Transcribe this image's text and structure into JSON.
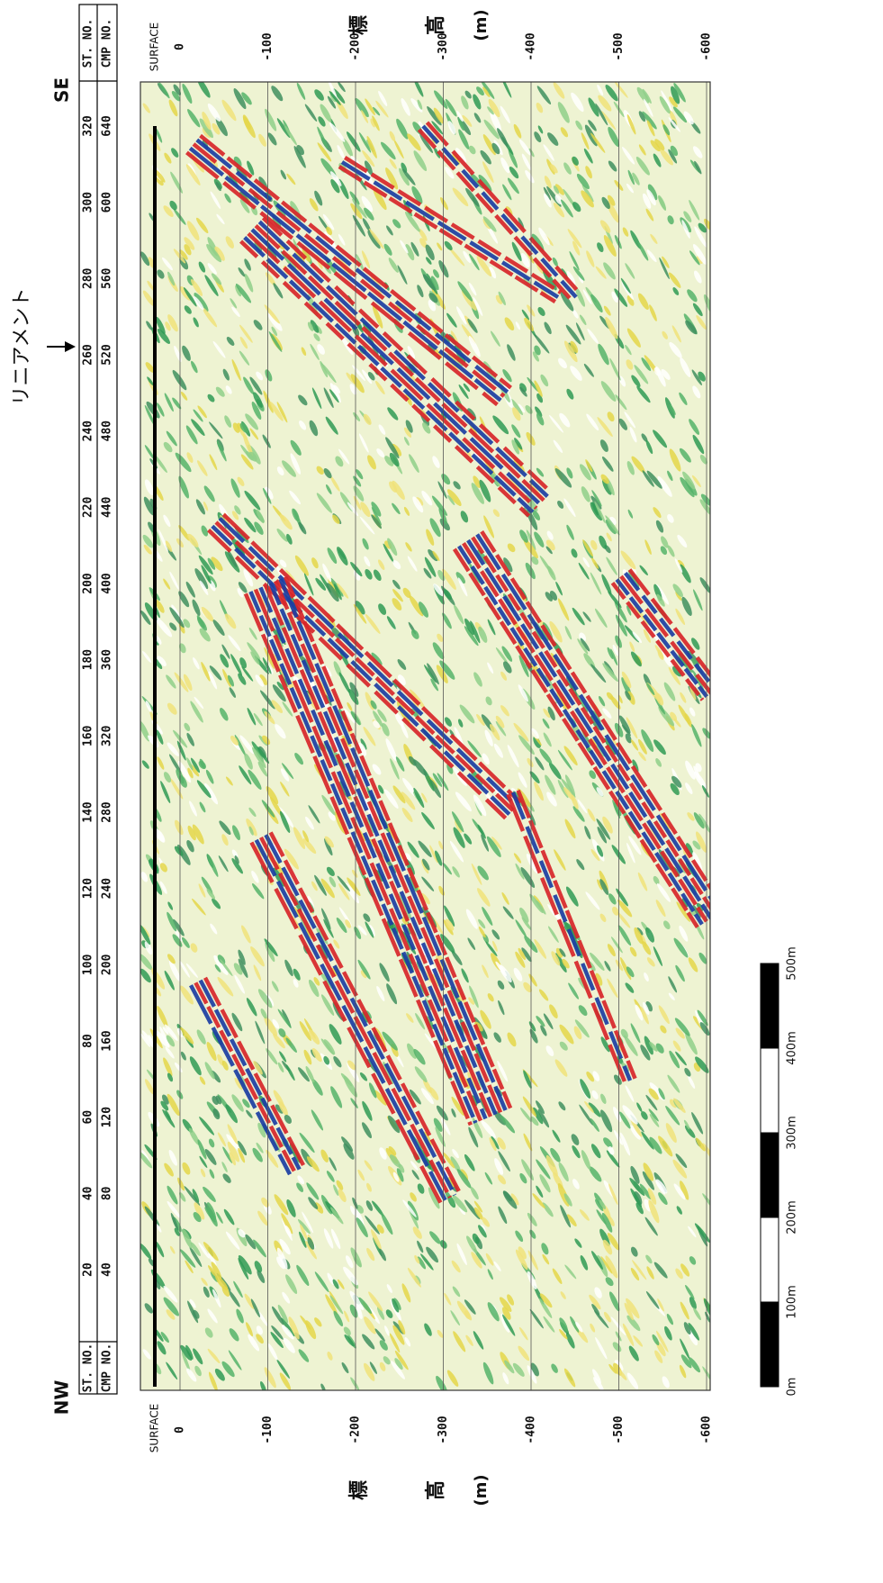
{
  "header": {
    "left_direction": "NW",
    "right_direction": "SE",
    "annotation": "リニアメント"
  },
  "station_table": {
    "row_labels": [
      "ST. NO.",
      "CMP NO."
    ],
    "st_no": [
      20,
      40,
      60,
      80,
      100,
      120,
      140,
      160,
      180,
      200,
      220,
      240,
      260,
      280,
      300,
      320
    ],
    "cmp_no": [
      40,
      80,
      120,
      160,
      200,
      240,
      280,
      320,
      360,
      400,
      440,
      480,
      520,
      560,
      600,
      640
    ]
  },
  "depth_axis": {
    "surface_label": "SURFACE",
    "ticks": [
      0,
      -100,
      -200,
      -300,
      -400,
      -500,
      -600
    ],
    "title": [
      "標",
      "高",
      "(m)"
    ]
  },
  "scale_bar": {
    "labels": [
      "0m",
      "100m",
      "200m",
      "300m",
      "400m",
      "500m"
    ]
  }
}
